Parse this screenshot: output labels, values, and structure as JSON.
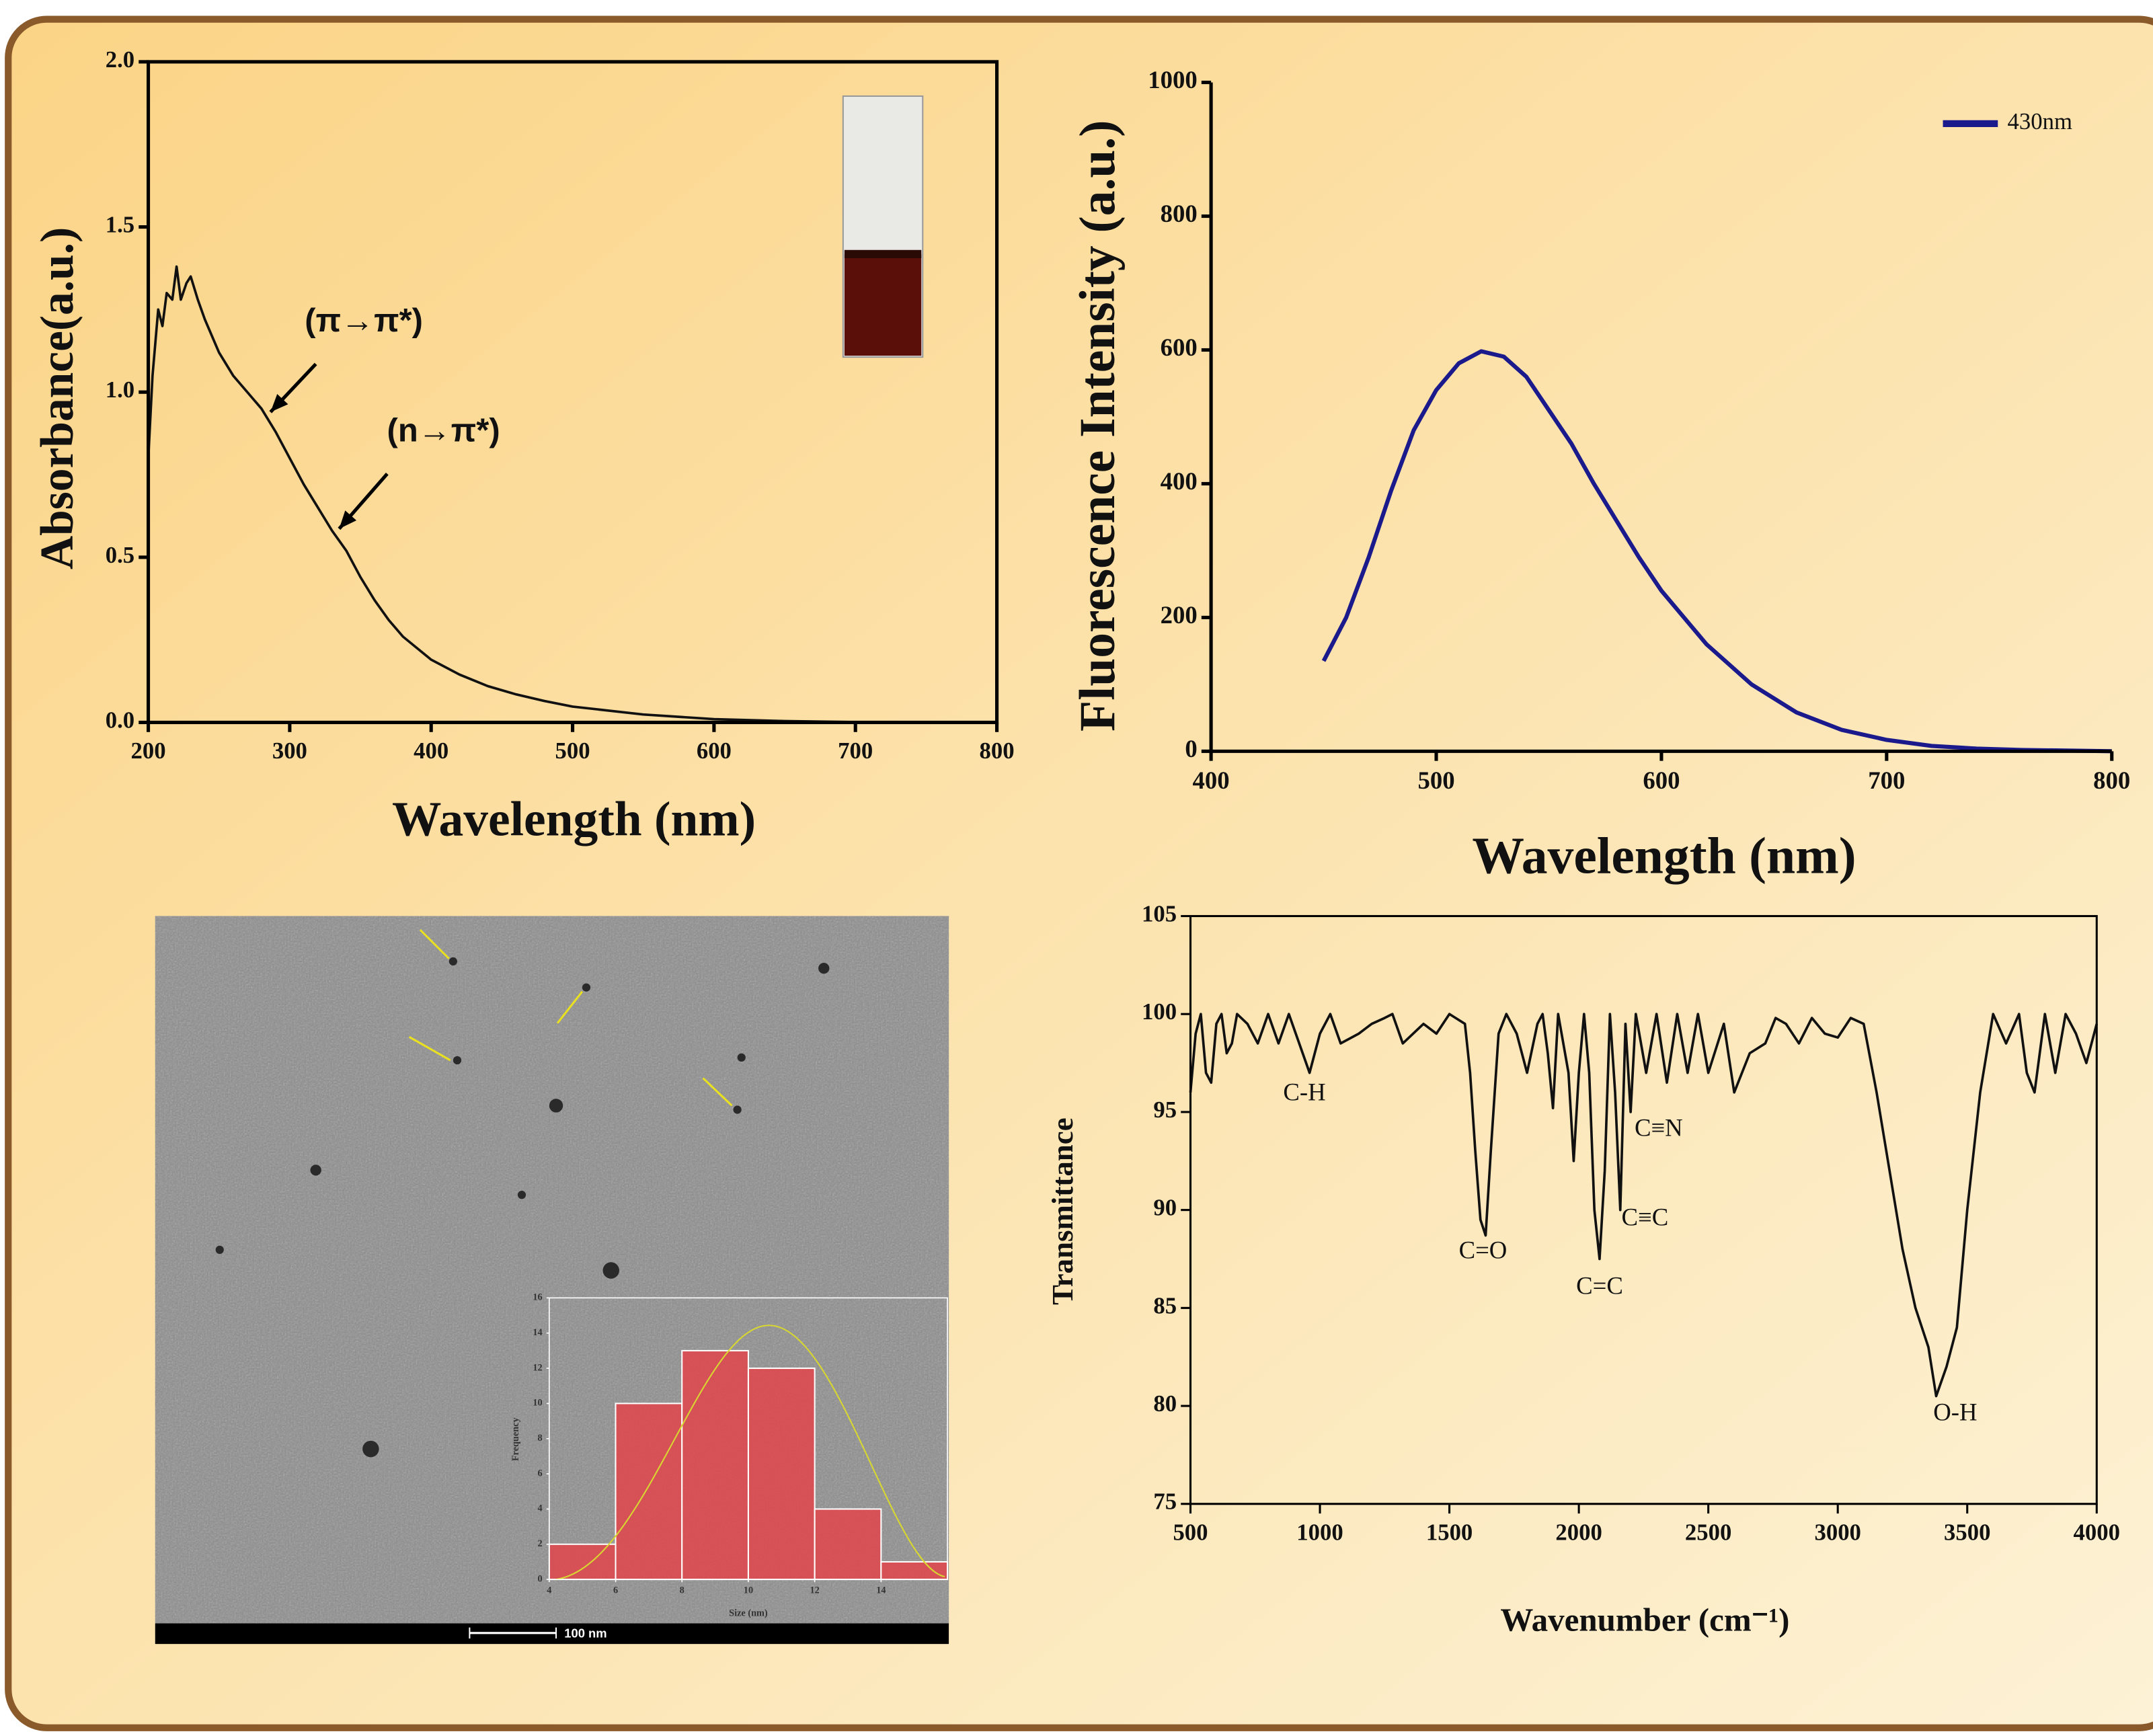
{
  "chart_data": [
    {
      "type": "line",
      "ylabel": "Absorbance(a.u.)",
      "xlabel": "Wavelength (nm)",
      "x": [
        200,
        203,
        207,
        210,
        213,
        217,
        220,
        223,
        227,
        230,
        235,
        240,
        250,
        260,
        270,
        280,
        290,
        300,
        310,
        320,
        330,
        340,
        350,
        360,
        370,
        380,
        400,
        420,
        440,
        460,
        480,
        500,
        550,
        600,
        650,
        700,
        750,
        800
      ],
      "series": [
        {
          "color": "#111111",
          "values": [
            0.8,
            1.05,
            1.25,
            1.2,
            1.3,
            1.28,
            1.38,
            1.28,
            1.33,
            1.35,
            1.28,
            1.22,
            1.12,
            1.05,
            1.0,
            0.95,
            0.88,
            0.8,
            0.72,
            0.65,
            0.58,
            0.52,
            0.44,
            0.37,
            0.31,
            0.26,
            0.19,
            0.145,
            0.11,
            0.085,
            0.065,
            0.048,
            0.024,
            0.01,
            0.004,
            0.001,
            0,
            0
          ]
        }
      ],
      "xlim": [
        200,
        800
      ],
      "xticks": [
        200,
        300,
        400,
        500,
        600,
        700,
        800
      ],
      "ylim": [
        0,
        2
      ],
      "yticks": [
        {
          "value": 0,
          "label": "0.0"
        },
        0.5,
        {
          "value": 1,
          "label": "1.0"
        },
        1.5,
        {
          "value": 2,
          "label": "2.0"
        }
      ],
      "annotations": [
        "(π→π*)",
        "(n→π*)"
      ]
    },
    {
      "type": "line",
      "ylabel": "Fluorescence Intensity (a.u.)",
      "xlabel": "Wavelength (nm)",
      "x": [
        450,
        460,
        470,
        480,
        490,
        500,
        510,
        520,
        530,
        540,
        550,
        560,
        570,
        580,
        590,
        600,
        620,
        640,
        660,
        680,
        700,
        720,
        740,
        760,
        780,
        800
      ],
      "series": [
        {
          "name": "430nm",
          "color": "#1a1a8c",
          "values": [
            135,
            200,
            290,
            390,
            480,
            540,
            580,
            598,
            590,
            560,
            510,
            460,
            400,
            345,
            290,
            240,
            160,
            100,
            58,
            32,
            17,
            8,
            4,
            2,
            1,
            0
          ]
        }
      ],
      "xlim": [
        400,
        800
      ],
      "xticks": [
        400,
        500,
        600,
        700,
        800
      ],
      "ylim": [
        0,
        1000
      ],
      "yticks": [
        0,
        200,
        400,
        600,
        800,
        1000
      ]
    },
    {
      "type": "line",
      "ylabel": "Transmittance",
      "xlabel": "Wavenumber (cm⁻¹)",
      "x": [
        500,
        520,
        540,
        560,
        580,
        600,
        620,
        640,
        660,
        680,
        720,
        760,
        800,
        840,
        880,
        920,
        960,
        1000,
        1040,
        1080,
        1150,
        1200,
        1250,
        1280,
        1320,
        1400,
        1450,
        1500,
        1560,
        1580,
        1600,
        1620,
        1640,
        1660,
        1690,
        1720,
        1760,
        1800,
        1840,
        1860,
        1880,
        1900,
        1920,
        1960,
        1980,
        2000,
        2020,
        2040,
        2060,
        2080,
        2100,
        2120,
        2140,
        2160,
        2180,
        2200,
        2220,
        2260,
        2300,
        2340,
        2380,
        2420,
        2460,
        2500,
        2560,
        2600,
        2660,
        2720,
        2760,
        2800,
        2850,
        2900,
        2950,
        3000,
        3050,
        3100,
        3150,
        3200,
        3250,
        3300,
        3350,
        3380,
        3420,
        3460,
        3500,
        3550,
        3600,
        3650,
        3700,
        3730,
        3760,
        3800,
        3840,
        3880,
        3920,
        3960,
        4000
      ],
      "series": [
        {
          "color": "#111111",
          "values": [
            96,
            99,
            100,
            97,
            96.5,
            99.5,
            100,
            98,
            98.5,
            100,
            99.5,
            98.5,
            100,
            98.5,
            100,
            98.5,
            97,
            99,
            100,
            98.5,
            99,
            99.5,
            99.8,
            100,
            98.5,
            99.5,
            99,
            100,
            99.5,
            97,
            93,
            89.5,
            88.7,
            93,
            99,
            100,
            99,
            97,
            99.5,
            100,
            98,
            95.2,
            100,
            97,
            92.5,
            97,
            100,
            97,
            90,
            87.5,
            92,
            100,
            96,
            90,
            99.5,
            95,
            100,
            97,
            100,
            96.5,
            100,
            97,
            100,
            97,
            99.5,
            96,
            98,
            98.5,
            99.8,
            99.5,
            98.5,
            99.8,
            99,
            98.8,
            99.8,
            99.5,
            96,
            92,
            88,
            85,
            83,
            80.5,
            82,
            84,
            90,
            96,
            100,
            98.5,
            100,
            97,
            96,
            100,
            97,
            100,
            99,
            97.5,
            99.5
          ]
        }
      ],
      "xlim": [
        500,
        4000
      ],
      "xticks": [
        500,
        1000,
        1500,
        2000,
        2500,
        3000,
        3500,
        4000
      ],
      "ylim": [
        75,
        105
      ],
      "yticks": [
        75,
        80,
        85,
        90,
        95,
        100,
        105
      ],
      "annotations": [
        "C-H",
        "C=O",
        "C=C",
        "C≡C",
        "C≡N",
        "O-H"
      ]
    },
    {
      "type": "histogram",
      "ylabel": "Frequency",
      "xlabel": "Size (nm)",
      "bins": [
        4,
        6,
        8,
        10,
        12,
        14,
        16
      ],
      "values": [
        2,
        10,
        13,
        12,
        4,
        1
      ],
      "color": "#e0454a",
      "xlim": [
        4,
        16
      ],
      "xticks": [
        4,
        6,
        8,
        10,
        12,
        14
      ],
      "ylim": [
        0,
        16
      ],
      "yticks": [
        0,
        2,
        4,
        6,
        8,
        10,
        12,
        14,
        16
      ]
    }
  ],
  "tem_image": {
    "scale_bar_label": "100 nm"
  }
}
